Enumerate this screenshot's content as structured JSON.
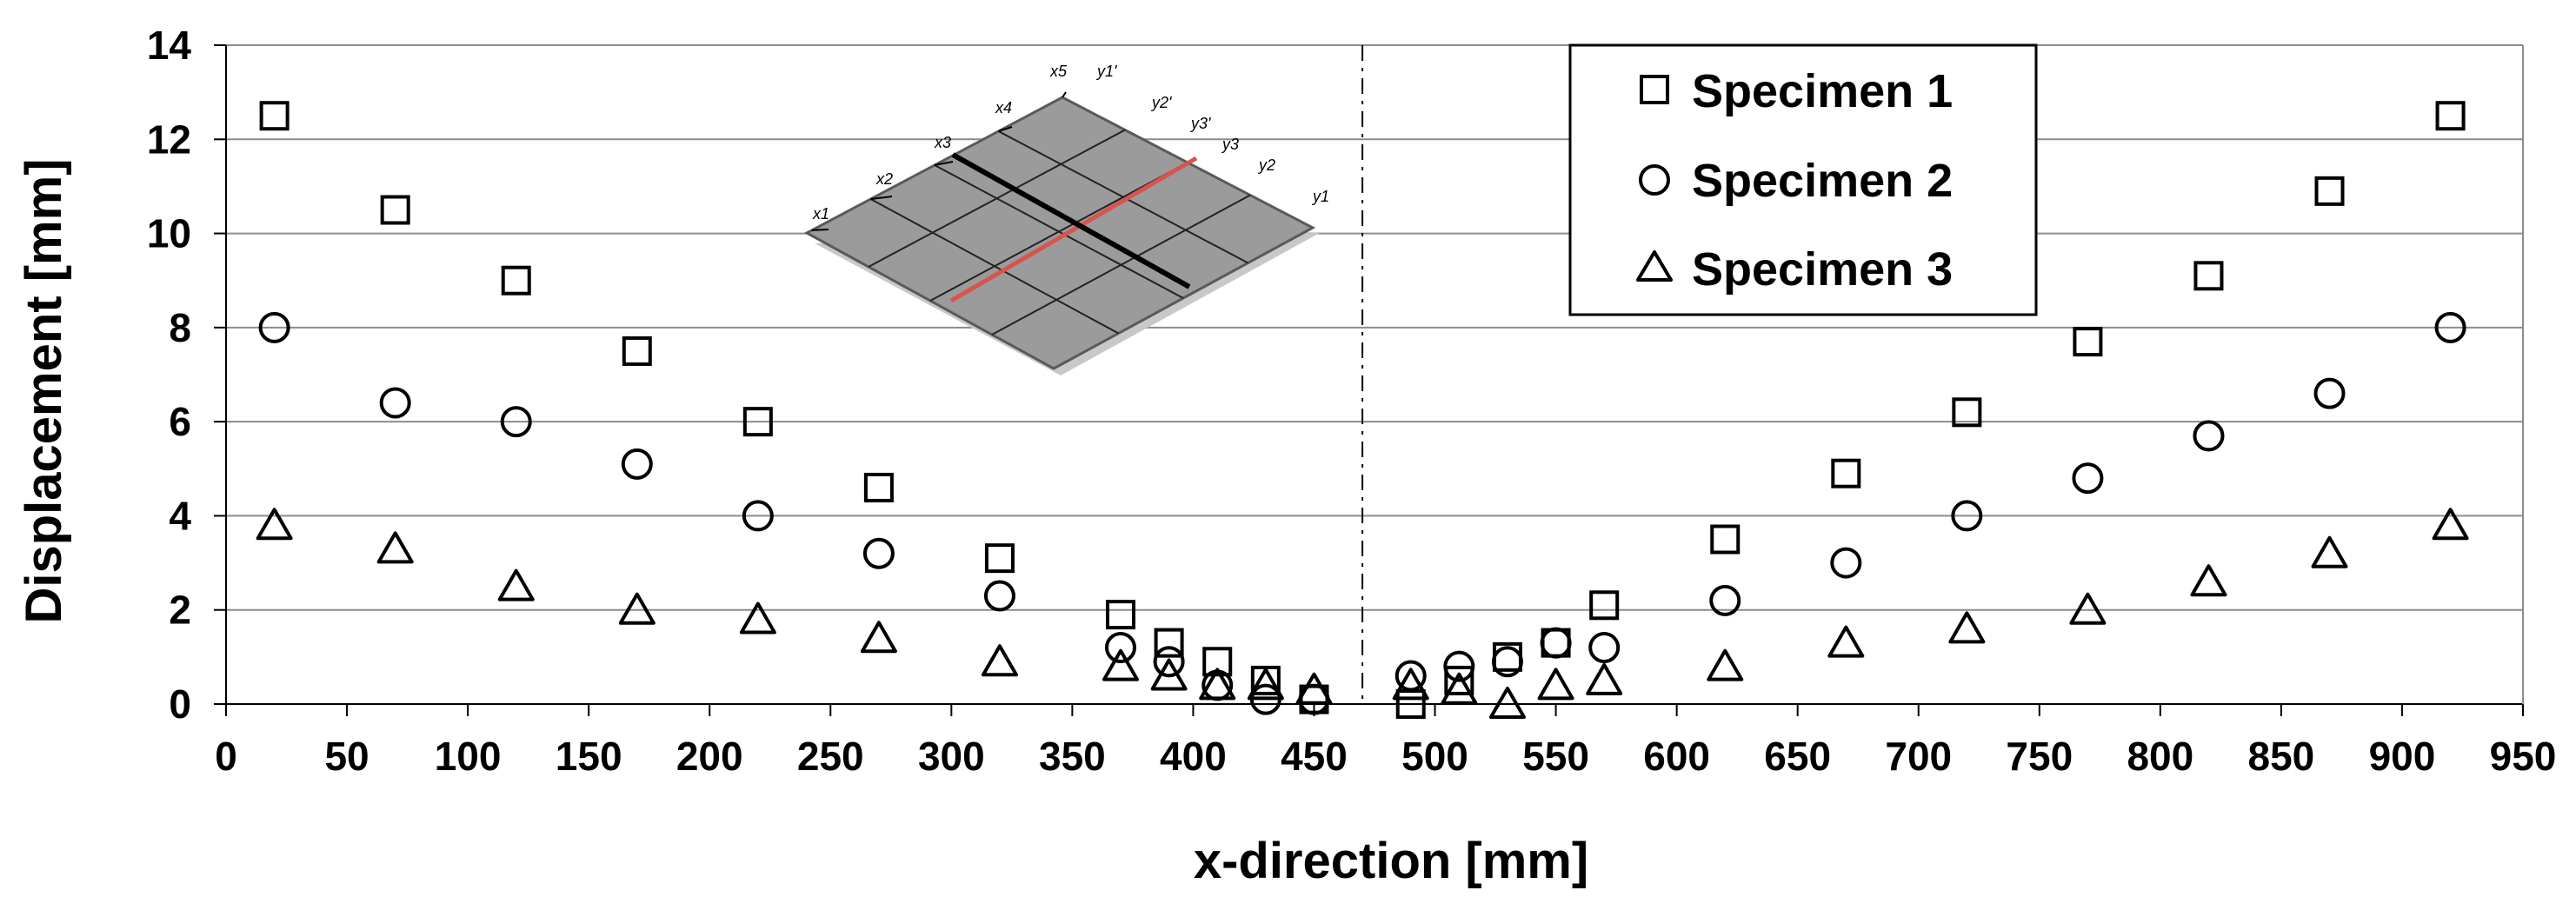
{
  "chart_data": {
    "type": "scatter",
    "title": "",
    "xlabel": "x-direction [mm]",
    "ylabel": "Displacement [mm]",
    "xlim": [
      0,
      950
    ],
    "ylim": [
      0,
      14
    ],
    "x_ticks": [
      0,
      50,
      100,
      150,
      200,
      250,
      300,
      350,
      400,
      450,
      500,
      550,
      600,
      650,
      700,
      750,
      800,
      850,
      900,
      950
    ],
    "y_ticks": [
      0,
      2,
      4,
      6,
      8,
      10,
      12,
      14
    ],
    "grid": "horizontal",
    "centerline_x": 470,
    "legend_position": "top-right",
    "series": [
      {
        "name": "Specimen 1",
        "marker": "square",
        "points": [
          [
            20,
            12.5
          ],
          [
            70,
            10.5
          ],
          [
            120,
            9.0
          ],
          [
            170,
            7.5
          ],
          [
            220,
            6.0
          ],
          [
            270,
            4.6
          ],
          [
            320,
            3.1
          ],
          [
            370,
            1.9
          ],
          [
            390,
            1.3
          ],
          [
            410,
            0.9
          ],
          [
            430,
            0.5
          ],
          [
            450,
            0.1
          ],
          [
            490,
            0.0
          ],
          [
            510,
            0.5
          ],
          [
            530,
            1.0
          ],
          [
            550,
            1.3
          ],
          [
            570,
            2.1
          ],
          [
            620,
            3.5
          ],
          [
            670,
            4.9
          ],
          [
            720,
            6.2
          ],
          [
            770,
            7.7
          ],
          [
            820,
            9.1
          ],
          [
            870,
            10.9
          ],
          [
            920,
            12.5
          ]
        ]
      },
      {
        "name": "Specimen 2",
        "marker": "circle",
        "points": [
          [
            20,
            8.0
          ],
          [
            70,
            6.4
          ],
          [
            120,
            6.0
          ],
          [
            170,
            5.1
          ],
          [
            220,
            4.0
          ],
          [
            270,
            3.2
          ],
          [
            320,
            2.3
          ],
          [
            370,
            1.2
          ],
          [
            390,
            0.9
          ],
          [
            410,
            0.4
          ],
          [
            430,
            0.1
          ],
          [
            450,
            0.1
          ],
          [
            490,
            0.6
          ],
          [
            510,
            0.8
          ],
          [
            530,
            0.9
          ],
          [
            550,
            1.3
          ],
          [
            570,
            1.2
          ],
          [
            620,
            2.2
          ],
          [
            670,
            3.0
          ],
          [
            720,
            4.0
          ],
          [
            770,
            4.8
          ],
          [
            820,
            5.7
          ],
          [
            870,
            6.6
          ],
          [
            920,
            8.0
          ]
        ]
      },
      {
        "name": "Specimen 3",
        "marker": "triangle",
        "points": [
          [
            20,
            3.8
          ],
          [
            70,
            3.3
          ],
          [
            120,
            2.5
          ],
          [
            170,
            2.0
          ],
          [
            220,
            1.8
          ],
          [
            270,
            1.4
          ],
          [
            320,
            0.9
          ],
          [
            370,
            0.8
          ],
          [
            390,
            0.6
          ],
          [
            410,
            0.4
          ],
          [
            430,
            0.4
          ],
          [
            450,
            0.3
          ],
          [
            490,
            0.4
          ],
          [
            510,
            0.3
          ],
          [
            530,
            0.0
          ],
          [
            550,
            0.4
          ],
          [
            570,
            0.5
          ],
          [
            620,
            0.8
          ],
          [
            670,
            1.3
          ],
          [
            720,
            1.6
          ],
          [
            770,
            2.0
          ],
          [
            820,
            2.6
          ],
          [
            870,
            3.2
          ],
          [
            920,
            3.8
          ]
        ]
      }
    ],
    "inset": {
      "x_labels": [
        "x1",
        "x2",
        "x3",
        "x4",
        "x5"
      ],
      "y_labels": [
        "y1",
        "y2",
        "y3",
        "y3'",
        "y2'",
        "y1'"
      ]
    }
  },
  "colors": {
    "axis": "#000000",
    "grid": "#8c8c8c",
    "plate_fill": "#9b9b9b",
    "plate_edge": "#5a5a5a",
    "highlight": "#d9534f"
  }
}
